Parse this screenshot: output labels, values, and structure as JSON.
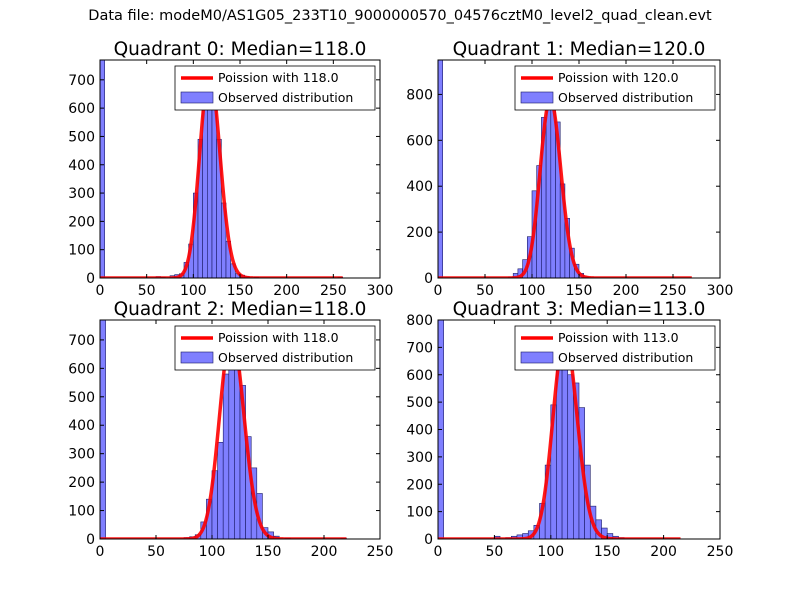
{
  "suptitle": "Data file: modeM0/AS1G05_233T10_9000000570_04576cztM0_level2_quad_clean.evt",
  "colors": {
    "bar_fill": "#7f7fff",
    "bar_edge": "#1a1a66",
    "fit_line": "#ff0000",
    "frame": "#000000"
  },
  "legend": {
    "poisson_prefix": "Poission with ",
    "observed": "Observed distribution",
    "placement": "upper right"
  },
  "chart_data": [
    {
      "type": "bar",
      "title": "Quadrant 0: Median=118.0",
      "median": 118.0,
      "poisson_label": "Poission with 118.0",
      "observed_label": "Observed distribution",
      "xlim": [
        0,
        300
      ],
      "ylim": [
        0,
        770
      ],
      "xticks": [
        0,
        50,
        100,
        150,
        200,
        250,
        300
      ],
      "yticks": [
        0,
        100,
        200,
        300,
        400,
        500,
        600,
        700
      ],
      "bin_width": 5,
      "bins": [
        {
          "x": 0,
          "count": 770
        },
        {
          "x": 60,
          "count": 5
        },
        {
          "x": 65,
          "count": 3
        },
        {
          "x": 75,
          "count": 8
        },
        {
          "x": 80,
          "count": 12
        },
        {
          "x": 85,
          "count": 15
        },
        {
          "x": 90,
          "count": 55
        },
        {
          "x": 95,
          "count": 120
        },
        {
          "x": 100,
          "count": 300
        },
        {
          "x": 105,
          "count": 490
        },
        {
          "x": 110,
          "count": 700
        },
        {
          "x": 115,
          "count": 725
        },
        {
          "x": 120,
          "count": 610
        },
        {
          "x": 125,
          "count": 490
        },
        {
          "x": 130,
          "count": 265
        },
        {
          "x": 135,
          "count": 130
        },
        {
          "x": 140,
          "count": 50
        },
        {
          "x": 145,
          "count": 15
        },
        {
          "x": 150,
          "count": 10
        },
        {
          "x": 155,
          "count": 5
        },
        {
          "x": 165,
          "count": 3
        },
        {
          "x": 255,
          "count": 3
        }
      ],
      "curve_xmax": 260
    },
    {
      "type": "bar",
      "title": "Quadrant 1: Median=120.0",
      "median": 120.0,
      "poisson_label": "Poission with 120.0",
      "observed_label": "Observed distribution",
      "xlim": [
        0,
        300
      ],
      "ylim": [
        0,
        950
      ],
      "xticks": [
        0,
        50,
        100,
        150,
        200,
        250,
        300
      ],
      "yticks": [
        0,
        200,
        400,
        600,
        800
      ],
      "bin_width": 5,
      "bins": [
        {
          "x": 0,
          "count": 950
        },
        {
          "x": 75,
          "count": 5
        },
        {
          "x": 80,
          "count": 20
        },
        {
          "x": 85,
          "count": 40
        },
        {
          "x": 90,
          "count": 80
        },
        {
          "x": 95,
          "count": 180
        },
        {
          "x": 100,
          "count": 380
        },
        {
          "x": 105,
          "count": 490
        },
        {
          "x": 110,
          "count": 700
        },
        {
          "x": 115,
          "count": 770
        },
        {
          "x": 120,
          "count": 780
        },
        {
          "x": 125,
          "count": 680
        },
        {
          "x": 130,
          "count": 410
        },
        {
          "x": 135,
          "count": 260
        },
        {
          "x": 140,
          "count": 130
        },
        {
          "x": 145,
          "count": 60
        },
        {
          "x": 150,
          "count": 20
        },
        {
          "x": 155,
          "count": 5
        }
      ],
      "curve_xmax": 270
    },
    {
      "type": "bar",
      "title": "Quadrant 2: Median=118.0",
      "median": 118.0,
      "poisson_label": "Poission with 118.0",
      "observed_label": "Observed distribution",
      "xlim": [
        0,
        250
      ],
      "ylim": [
        0,
        770
      ],
      "xticks": [
        0,
        50,
        100,
        150,
        200,
        250
      ],
      "yticks": [
        0,
        100,
        200,
        300,
        400,
        500,
        600,
        700
      ],
      "bin_width": 5,
      "bins": [
        {
          "x": 0,
          "count": 770
        },
        {
          "x": 75,
          "count": 5
        },
        {
          "x": 80,
          "count": 8
        },
        {
          "x": 85,
          "count": 15
        },
        {
          "x": 90,
          "count": 60
        },
        {
          "x": 95,
          "count": 140
        },
        {
          "x": 100,
          "count": 240
        },
        {
          "x": 105,
          "count": 340
        },
        {
          "x": 110,
          "count": 580
        },
        {
          "x": 115,
          "count": 640
        },
        {
          "x": 120,
          "count": 720
        },
        {
          "x": 125,
          "count": 540
        },
        {
          "x": 130,
          "count": 360
        },
        {
          "x": 135,
          "count": 250
        },
        {
          "x": 140,
          "count": 160
        },
        {
          "x": 145,
          "count": 40
        },
        {
          "x": 150,
          "count": 25
        },
        {
          "x": 155,
          "count": 10
        },
        {
          "x": 165,
          "count": 3
        },
        {
          "x": 215,
          "count": 3
        }
      ],
      "curve_xmax": 220
    },
    {
      "type": "bar",
      "title": "Quadrant 3: Median=113.0",
      "median": 113.0,
      "poisson_label": "Poission with 113.0",
      "observed_label": "Observed distribution",
      "xlim": [
        0,
        250
      ],
      "ylim": [
        0,
        800
      ],
      "xticks": [
        0,
        50,
        100,
        150,
        200,
        250
      ],
      "yticks": [
        0,
        100,
        200,
        300,
        400,
        500,
        600,
        700,
        800
      ],
      "bin_width": 5,
      "bins": [
        {
          "x": 0,
          "count": 800
        },
        {
          "x": 50,
          "count": 10
        },
        {
          "x": 60,
          "count": 5
        },
        {
          "x": 65,
          "count": 10
        },
        {
          "x": 70,
          "count": 15
        },
        {
          "x": 75,
          "count": 20
        },
        {
          "x": 80,
          "count": 30
        },
        {
          "x": 85,
          "count": 50
        },
        {
          "x": 90,
          "count": 130
        },
        {
          "x": 95,
          "count": 270
        },
        {
          "x": 100,
          "count": 490
        },
        {
          "x": 105,
          "count": 700
        },
        {
          "x": 110,
          "count": 740
        },
        {
          "x": 115,
          "count": 600
        },
        {
          "x": 120,
          "count": 570
        },
        {
          "x": 125,
          "count": 480
        },
        {
          "x": 130,
          "count": 270
        },
        {
          "x": 135,
          "count": 120
        },
        {
          "x": 140,
          "count": 70
        },
        {
          "x": 145,
          "count": 40
        },
        {
          "x": 150,
          "count": 20
        },
        {
          "x": 155,
          "count": 10
        },
        {
          "x": 160,
          "count": 5
        }
      ],
      "curve_xmax": 215
    }
  ]
}
